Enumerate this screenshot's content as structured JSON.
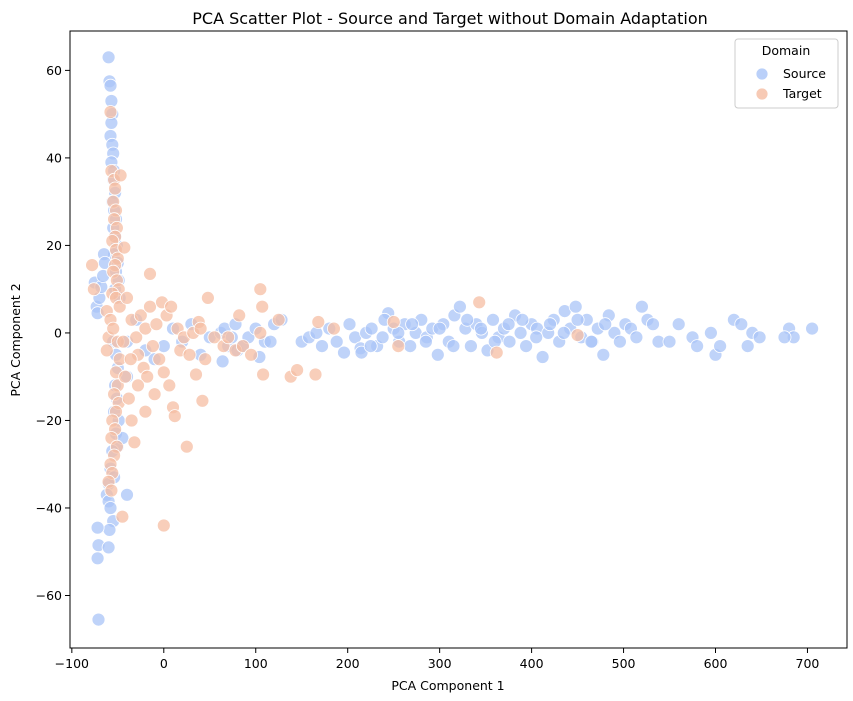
{
  "chart_data": {
    "type": "scatter",
    "title": "PCA Scatter Plot - Source and Target without Domain Adaptation",
    "xlabel": "PCA Component 1",
    "ylabel": "PCA Component 2",
    "xlim": [
      -102,
      743
    ],
    "ylim": [
      -72,
      69
    ],
    "xticks": [
      -100,
      0,
      100,
      200,
      300,
      400,
      500,
      600,
      700
    ],
    "yticks": [
      -60,
      -40,
      -20,
      0,
      20,
      40,
      60
    ],
    "xtick_labels": [
      "−100",
      "0",
      "100",
      "200",
      "300",
      "400",
      "500",
      "600",
      "700"
    ],
    "ytick_labels": [
      "−60",
      "−40",
      "−20",
      "0",
      "20",
      "40",
      "60"
    ],
    "grid": false,
    "legend": {
      "title": "Domain",
      "placement": "top-right"
    },
    "series": [
      {
        "name": "Source",
        "color": "#a9c4f7",
        "points": [
          [
            -60,
            63
          ],
          [
            -59,
            57.5
          ],
          [
            -58,
            56.5
          ],
          [
            -57,
            53
          ],
          [
            -56,
            50
          ],
          [
            -57,
            48
          ],
          [
            -58,
            45
          ],
          [
            -56,
            43
          ],
          [
            -55,
            41
          ],
          [
            -57,
            39
          ],
          [
            -54,
            37
          ],
          [
            -55,
            35
          ],
          [
            -53,
            32
          ],
          [
            -56,
            30
          ],
          [
            -54,
            28
          ],
          [
            -52,
            26
          ],
          [
            -55,
            24
          ],
          [
            -53,
            22
          ],
          [
            -51,
            20
          ],
          [
            -54,
            18
          ],
          [
            -50,
            16
          ],
          [
            -52,
            14
          ],
          [
            -49,
            12
          ],
          [
            -53,
            10
          ],
          [
            -48,
            8
          ],
          [
            -75,
            11.5
          ],
          [
            -73,
            6
          ],
          [
            -72,
            4.5
          ],
          [
            -70,
            8
          ],
          [
            -68,
            10.5
          ],
          [
            -66,
            13
          ],
          [
            -65,
            18
          ],
          [
            -64,
            16
          ],
          [
            -55,
            -2
          ],
          [
            -52,
            -5
          ],
          [
            -50,
            -8
          ],
          [
            -53,
            -12
          ],
          [
            -51,
            -15
          ],
          [
            -54,
            -18
          ],
          [
            -49,
            -20
          ],
          [
            -52,
            -23
          ],
          [
            -50,
            -26
          ],
          [
            -56,
            -27
          ],
          [
            -58,
            -31
          ],
          [
            -54,
            -33
          ],
          [
            -60,
            -34.5
          ],
          [
            -62,
            -37
          ],
          [
            -60,
            -38.5
          ],
          [
            -58,
            -40
          ],
          [
            -55,
            -43
          ],
          [
            -59,
            -45
          ],
          [
            -72,
            -44.5
          ],
          [
            -71,
            -48.5
          ],
          [
            -72,
            -51.5
          ],
          [
            -60,
            -49
          ],
          [
            -71,
            -65.5
          ],
          [
            -40,
            -37
          ],
          [
            -45,
            -24
          ],
          [
            -40,
            -10
          ],
          [
            -40,
            -2
          ],
          [
            -30,
            3
          ],
          [
            -20,
            -4
          ],
          [
            -10,
            -6
          ],
          [
            0,
            -3
          ],
          [
            10,
            1
          ],
          [
            20,
            -2
          ],
          [
            30,
            2
          ],
          [
            40,
            -5
          ],
          [
            50,
            -1
          ],
          [
            62,
            0
          ],
          [
            64,
            -6.5
          ],
          [
            66,
            1
          ],
          [
            70,
            -3
          ],
          [
            74,
            -1
          ],
          [
            78,
            2
          ],
          [
            80,
            -4
          ],
          [
            86,
            -3
          ],
          [
            92,
            -1
          ],
          [
            100,
            1
          ],
          [
            104,
            -5.5
          ],
          [
            110,
            -2
          ],
          [
            116,
            -2
          ],
          [
            120,
            2
          ],
          [
            128,
            3
          ],
          [
            150,
            -2
          ],
          [
            158,
            -1
          ],
          [
            166,
            0
          ],
          [
            172,
            -3
          ],
          [
            180,
            1
          ],
          [
            188,
            -2
          ],
          [
            196,
            -4.5
          ],
          [
            202,
            2
          ],
          [
            208,
            -1
          ],
          [
            214,
            -3.5
          ],
          [
            220,
            0
          ],
          [
            226,
            1
          ],
          [
            232,
            -3
          ],
          [
            238,
            -1
          ],
          [
            244,
            4.5
          ],
          [
            250,
            1
          ],
          [
            256,
            -2
          ],
          [
            262,
            2
          ],
          [
            268,
            -3
          ],
          [
            274,
            0
          ],
          [
            280,
            3
          ],
          [
            286,
            -1
          ],
          [
            292,
            1
          ],
          [
            298,
            -5
          ],
          [
            304,
            2
          ],
          [
            310,
            -2
          ],
          [
            316,
            4
          ],
          [
            322,
            6
          ],
          [
            328,
            1
          ],
          [
            334,
            -3
          ],
          [
            340,
            2
          ],
          [
            346,
            0
          ],
          [
            352,
            -4
          ],
          [
            358,
            3
          ],
          [
            364,
            -1
          ],
          [
            370,
            1
          ],
          [
            376,
            -2
          ],
          [
            382,
            4
          ],
          [
            388,
            0
          ],
          [
            394,
            -3
          ],
          [
            400,
            2
          ],
          [
            406,
            1
          ],
          [
            412,
            -5.5
          ],
          [
            418,
            0
          ],
          [
            424,
            3
          ],
          [
            430,
            -2
          ],
          [
            436,
            5
          ],
          [
            442,
            1
          ],
          [
            448,
            6
          ],
          [
            454,
            -1
          ],
          [
            460,
            3
          ],
          [
            466,
            -2
          ],
          [
            472,
            1
          ],
          [
            478,
            -5
          ],
          [
            484,
            4
          ],
          [
            490,
            0
          ],
          [
            496,
            -2
          ],
          [
            502,
            2
          ],
          [
            508,
            1
          ],
          [
            514,
            -1
          ],
          [
            520,
            6
          ],
          [
            526,
            3
          ],
          [
            532,
            2
          ],
          [
            538,
            -2
          ],
          [
            215,
            -4.5
          ],
          [
            225,
            -3
          ],
          [
            240,
            3
          ],
          [
            255,
            0
          ],
          [
            270,
            2
          ],
          [
            285,
            -2
          ],
          [
            300,
            1
          ],
          [
            315,
            -3
          ],
          [
            330,
            3
          ],
          [
            345,
            1
          ],
          [
            360,
            -2
          ],
          [
            375,
            2
          ],
          [
            390,
            3
          ],
          [
            405,
            -1
          ],
          [
            420,
            2
          ],
          [
            435,
            0
          ],
          [
            450,
            3
          ],
          [
            465,
            -2
          ],
          [
            480,
            2
          ],
          [
            550,
            -2
          ],
          [
            560,
            2
          ],
          [
            575,
            -1
          ],
          [
            580,
            -3
          ],
          [
            595,
            0
          ],
          [
            600,
            -5
          ],
          [
            605,
            -3
          ],
          [
            620,
            3
          ],
          [
            635,
            -3
          ],
          [
            640,
            0
          ],
          [
            648,
            -1
          ],
          [
            680,
            1
          ],
          [
            685,
            -1
          ],
          [
            705,
            1
          ],
          [
            675,
            -1
          ],
          [
            628,
            2
          ]
        ]
      },
      {
        "name": "Target",
        "color": "#f5bda3",
        "points": [
          [
            -58,
            50.5
          ],
          [
            -57,
            37
          ],
          [
            -54,
            35
          ],
          [
            -53,
            33
          ],
          [
            -55,
            30
          ],
          [
            -52,
            28
          ],
          [
            -54,
            26
          ],
          [
            -51,
            24
          ],
          [
            -53,
            22
          ],
          [
            -56,
            21
          ],
          [
            -52,
            19
          ],
          [
            -50,
            17
          ],
          [
            -53,
            15.5
          ],
          [
            -55,
            14
          ],
          [
            -51,
            12
          ],
          [
            -49,
            10
          ],
          [
            -56,
            9
          ],
          [
            -52,
            8
          ],
          [
            -48,
            6
          ],
          [
            -78,
            15.5
          ],
          [
            -76,
            10
          ],
          [
            -62,
            5
          ],
          [
            -58,
            3
          ],
          [
            -60,
            -1
          ],
          [
            -62,
            -4
          ],
          [
            -55,
            1
          ],
          [
            -50,
            -2
          ],
          [
            -48,
            -6
          ],
          [
            -52,
            -9
          ],
          [
            -50,
            -12
          ],
          [
            -54,
            -14
          ],
          [
            -49,
            -16
          ],
          [
            -52,
            -18
          ],
          [
            -56,
            -20
          ],
          [
            -53,
            -22
          ],
          [
            -57,
            -24
          ],
          [
            -51,
            -26
          ],
          [
            -54,
            -28
          ],
          [
            -58,
            -30
          ],
          [
            -56,
            -32
          ],
          [
            -60,
            -34
          ],
          [
            -57,
            -36
          ],
          [
            -47,
            36
          ],
          [
            -43,
            19.5
          ],
          [
            -15,
            13.5
          ],
          [
            -40,
            8
          ],
          [
            -35,
            3
          ],
          [
            -30,
            -1
          ],
          [
            -28,
            -5
          ],
          [
            -25,
            4
          ],
          [
            -22,
            -8
          ],
          [
            -20,
            1
          ],
          [
            -18,
            -10
          ],
          [
            -15,
            6
          ],
          [
            -12,
            -3
          ],
          [
            -10,
            -14
          ],
          [
            -8,
            2
          ],
          [
            -5,
            -6
          ],
          [
            -2,
            7
          ],
          [
            0,
            -9
          ],
          [
            3,
            4
          ],
          [
            6,
            -12
          ],
          [
            8,
            6
          ],
          [
            10,
            -17
          ],
          [
            12,
            -19
          ],
          [
            15,
            1
          ],
          [
            18,
            -4
          ],
          [
            22,
            -1
          ],
          [
            25,
            -26
          ],
          [
            28,
            -5
          ],
          [
            32,
            0
          ],
          [
            35,
            -9.5
          ],
          [
            38,
            2.5
          ],
          [
            40,
            1
          ],
          [
            42,
            -15.5
          ],
          [
            45,
            -6
          ],
          [
            48,
            8
          ],
          [
            -42,
            -10
          ],
          [
            -38,
            -15
          ],
          [
            -35,
            -20
          ],
          [
            -32,
            -25
          ],
          [
            -45,
            -42
          ],
          [
            0,
            -44
          ],
          [
            -20,
            -18
          ],
          [
            -28,
            -12
          ],
          [
            -36,
            -6
          ],
          [
            -44,
            -2
          ],
          [
            55,
            -1
          ],
          [
            65,
            -3
          ],
          [
            70,
            -1
          ],
          [
            78,
            -4
          ],
          [
            82,
            4
          ],
          [
            86,
            -3
          ],
          [
            95,
            -5
          ],
          [
            105,
            10
          ],
          [
            107,
            6
          ],
          [
            105,
            0
          ],
          [
            108,
            -9.5
          ],
          [
            125,
            3
          ],
          [
            138,
            -10
          ],
          [
            145,
            -8.5
          ],
          [
            165,
            -9.5
          ],
          [
            168,
            2.5
          ],
          [
            185,
            1
          ],
          [
            250,
            2.5
          ],
          [
            255,
            -3
          ],
          [
            343,
            7
          ],
          [
            362,
            -4.5
          ],
          [
            450,
            -0.5
          ]
        ]
      }
    ]
  }
}
